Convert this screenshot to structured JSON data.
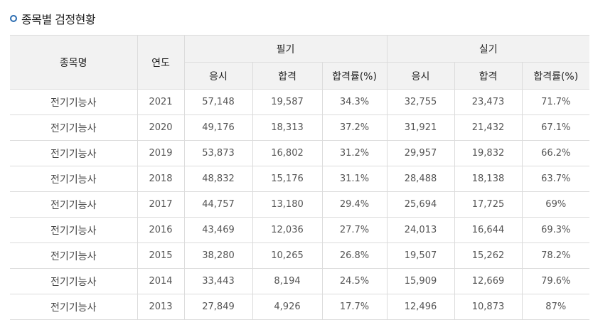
{
  "section_title": "종목별 검정현황",
  "headers": {
    "name": "종목명",
    "year": "연도",
    "written": "필기",
    "practical": "실기",
    "applicants": "응시",
    "passed": "합격",
    "rate": "합격률(%)"
  },
  "rows": [
    {
      "name": "전기기능사",
      "year": "2021",
      "w_app": "57,148",
      "w_pass": "19,587",
      "w_rate": "34.3%",
      "p_app": "32,755",
      "p_pass": "23,473",
      "p_rate": "71.7%"
    },
    {
      "name": "전기기능사",
      "year": "2020",
      "w_app": "49,176",
      "w_pass": "18,313",
      "w_rate": "37.2%",
      "p_app": "31,921",
      "p_pass": "21,432",
      "p_rate": "67.1%"
    },
    {
      "name": "전기기능사",
      "year": "2019",
      "w_app": "53,873",
      "w_pass": "16,802",
      "w_rate": "31.2%",
      "p_app": "29,957",
      "p_pass": "19,832",
      "p_rate": "66.2%"
    },
    {
      "name": "전기기능사",
      "year": "2018",
      "w_app": "48,832",
      "w_pass": "15,176",
      "w_rate": "31.1%",
      "p_app": "28,488",
      "p_pass": "18,138",
      "p_rate": "63.7%"
    },
    {
      "name": "전기기능사",
      "year": "2017",
      "w_app": "44,757",
      "w_pass": "13,180",
      "w_rate": "29.4%",
      "p_app": "25,694",
      "p_pass": "17,725",
      "p_rate": "69%"
    },
    {
      "name": "전기기능사",
      "year": "2016",
      "w_app": "43,469",
      "w_pass": "12,036",
      "w_rate": "27.7%",
      "p_app": "24,013",
      "p_pass": "16,644",
      "p_rate": "69.3%"
    },
    {
      "name": "전기기능사",
      "year": "2015",
      "w_app": "38,280",
      "w_pass": "10,265",
      "w_rate": "26.8%",
      "p_app": "19,507",
      "p_pass": "15,262",
      "p_rate": "78.2%"
    },
    {
      "name": "전기기능사",
      "year": "2014",
      "w_app": "33,443",
      "w_pass": "8,194",
      "w_rate": "24.5%",
      "p_app": "15,909",
      "p_pass": "12,669",
      "p_rate": "79.6%"
    },
    {
      "name": "전기기능사",
      "year": "2013",
      "w_app": "27,849",
      "w_pass": "4,926",
      "w_rate": "17.7%",
      "p_app": "12,496",
      "p_pass": "10,873",
      "p_rate": "87%"
    }
  ]
}
